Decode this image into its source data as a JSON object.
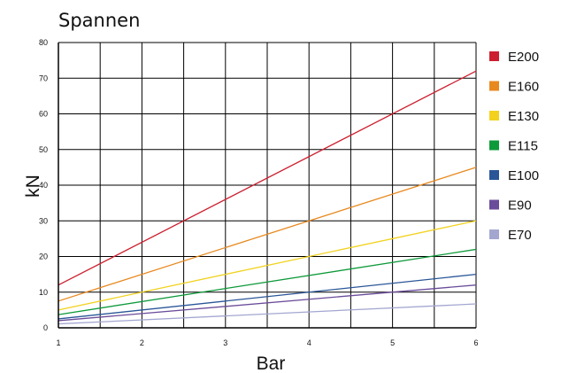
{
  "chart_data": {
    "type": "line",
    "title": "Spannen",
    "xlabel": "Bar",
    "ylabel": "kN",
    "xlim": [
      1,
      6
    ],
    "ylim": [
      0,
      80
    ],
    "x_ticks": [
      "1",
      "2",
      "3",
      "4",
      "5",
      "6"
    ],
    "y_ticks": [
      "0",
      "10",
      "20",
      "30",
      "40",
      "50",
      "60",
      "70",
      "80"
    ],
    "grid": true,
    "legend_position": "right",
    "x": [
      1,
      6
    ],
    "series": [
      {
        "name": "E200",
        "color": "#cc1f2f",
        "values": [
          12,
          72
        ]
      },
      {
        "name": "E160",
        "color": "#e8891f",
        "values": [
          7.5,
          45
        ]
      },
      {
        "name": "E130",
        "color": "#f2d21e",
        "values": [
          5,
          30
        ]
      },
      {
        "name": "E115",
        "color": "#0e9a3a",
        "values": [
          3.7,
          22
        ]
      },
      {
        "name": "E100",
        "color": "#2a5698",
        "values": [
          2.5,
          15
        ]
      },
      {
        "name": "E90",
        "color": "#6b4c9a",
        "values": [
          2,
          12
        ]
      },
      {
        "name": "E70",
        "color": "#a3a7d0",
        "values": [
          1.1,
          6.7
        ]
      }
    ]
  }
}
